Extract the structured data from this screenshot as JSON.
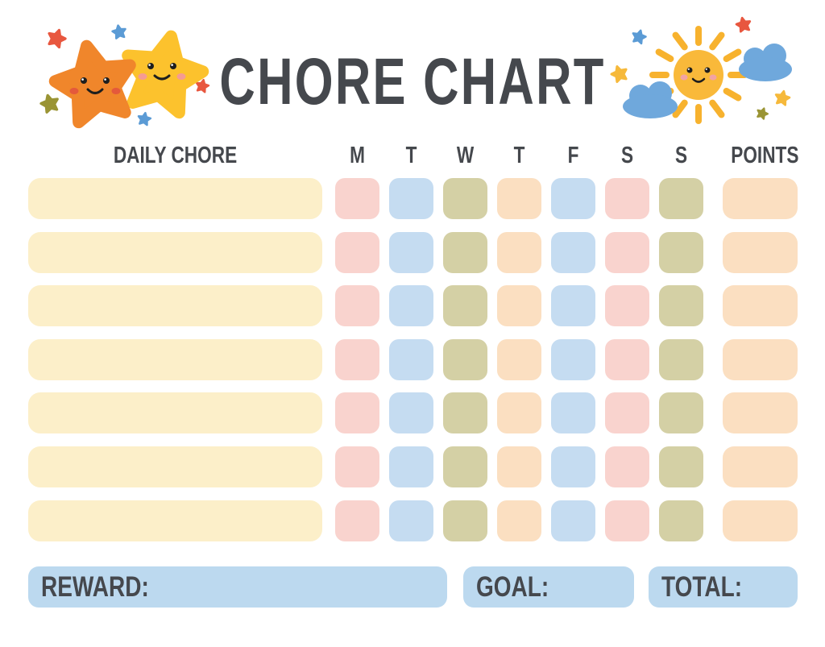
{
  "page": {
    "title": "CHORE CHART"
  },
  "table": {
    "chore_column_header": "DAILY CHORE",
    "day_headers": [
      "M",
      "T",
      "W",
      "T",
      "F",
      "S",
      "S"
    ],
    "points_column_header": "POINTS",
    "rows": [
      {
        "chore": "",
        "days": [
          "",
          "",
          "",
          "",
          "",
          "",
          ""
        ],
        "points": ""
      },
      {
        "chore": "",
        "days": [
          "",
          "",
          "",
          "",
          "",
          "",
          ""
        ],
        "points": ""
      },
      {
        "chore": "",
        "days": [
          "",
          "",
          "",
          "",
          "",
          "",
          ""
        ],
        "points": ""
      },
      {
        "chore": "",
        "days": [
          "",
          "",
          "",
          "",
          "",
          "",
          ""
        ],
        "points": ""
      },
      {
        "chore": "",
        "days": [
          "",
          "",
          "",
          "",
          "",
          "",
          ""
        ],
        "points": ""
      },
      {
        "chore": "",
        "days": [
          "",
          "",
          "",
          "",
          "",
          "",
          ""
        ],
        "points": ""
      },
      {
        "chore": "",
        "days": [
          "",
          "",
          "",
          "",
          "",
          "",
          ""
        ],
        "points": ""
      }
    ]
  },
  "footer": {
    "reward_label": "REWARD:",
    "goal_label": "GOAL:",
    "total_label": "TOTAL:"
  },
  "colors": {
    "text": "#45484D",
    "chore_bar": "#FCEFC9",
    "day_cell_colors": [
      "#F9D3CE",
      "#C5DCF1",
      "#D4D0A5",
      "#FBDFC1",
      "#C5DCF1",
      "#F9D3CE",
      "#D4D0A5"
    ],
    "points_cell": "#FBDFC1",
    "footer_box": "#BCD9EF",
    "star_orange": "#F0862B",
    "star_yellow": "#FCC22D",
    "sun_yellow": "#F9B93A",
    "cloud_blue": "#6FA8DC",
    "mini_star_red": "#E8573F",
    "mini_star_blue": "#5B9BD5",
    "mini_star_olive": "#9A9434",
    "mini_star_gold": "#F6B93B"
  },
  "decorations": {
    "left_icons": [
      "orange-star-icon",
      "yellow-star-icon",
      "mini-stars"
    ],
    "right_icons": [
      "sun-icon",
      "cloud-icons",
      "mini-stars"
    ]
  }
}
